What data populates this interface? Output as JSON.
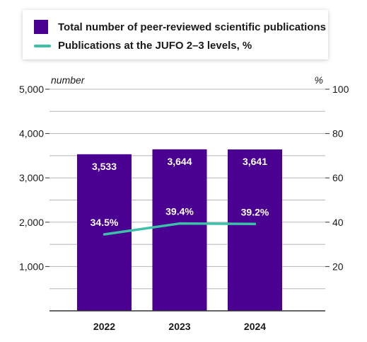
{
  "chart_data": {
    "type": "bar+line",
    "categories": [
      "2022",
      "2023",
      "2024"
    ],
    "series": [
      {
        "name": "Total number of peer-reviewed scientific publications",
        "type": "bar",
        "axis": "left",
        "values": [
          3533,
          3644,
          3641
        ],
        "labels": [
          "3,533",
          "3,644",
          "3,641"
        ],
        "color": "#4a0090"
      },
      {
        "name": "Publications at the JUFO 2–3 levels, %",
        "type": "line",
        "axis": "right",
        "values": [
          34.5,
          39.4,
          39.2
        ],
        "labels": [
          "34.5%",
          "39.4%",
          "39.2%"
        ],
        "color": "#3dbfa8"
      }
    ],
    "left_axis": {
      "label": "number",
      "ylim": [
        0,
        5000
      ],
      "ticks": [
        1000,
        2000,
        3000,
        4000,
        5000
      ],
      "tick_labels": [
        "1,000",
        "2,000",
        "3,000",
        "4,000",
        "5,000"
      ]
    },
    "right_axis": {
      "label": "%",
      "ylim": [
        0,
        100
      ],
      "ticks": [
        20,
        40,
        60,
        80,
        100
      ],
      "tick_labels": [
        "20",
        "40",
        "60",
        "80",
        "100"
      ]
    },
    "grid": true,
    "legend": "top"
  }
}
